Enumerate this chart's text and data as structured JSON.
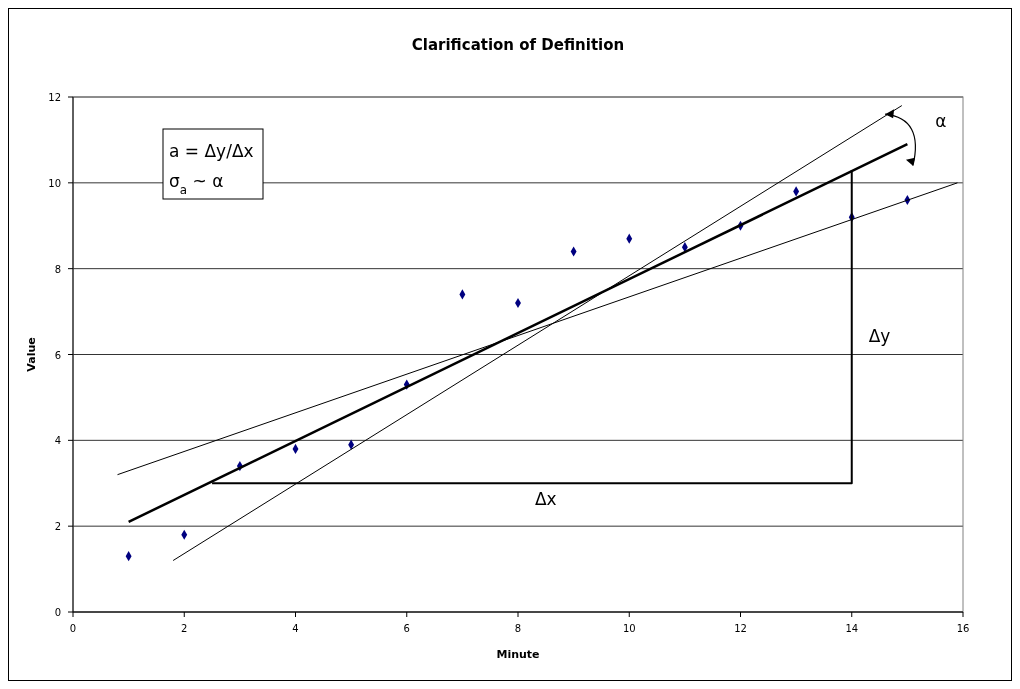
{
  "chart_data": {
    "type": "scatter",
    "title": "Clarification of Definition",
    "xlabel": "Minute",
    "ylabel": "Value",
    "xlim": [
      0,
      16
    ],
    "xticks": [
      0,
      2,
      4,
      6,
      8,
      10,
      12,
      14,
      16
    ],
    "ylim": [
      0,
      12
    ],
    "yticks": [
      0,
      2,
      4,
      6,
      8,
      10,
      12
    ],
    "grid": "y",
    "series": [
      {
        "marker": "diamond",
        "color": "#000080",
        "x": [
          1,
          2,
          3,
          4,
          5,
          6,
          7,
          8,
          9,
          10,
          11,
          12,
          13,
          14,
          15
        ],
        "values": [
          1.3,
          1.8,
          3.4,
          3.8,
          3.9,
          5.3,
          7.4,
          7.2,
          8.4,
          8.7,
          8.5,
          9.0,
          9.8,
          9.2,
          9.6
        ]
      },
      {
        "type": "line",
        "color": "#000000",
        "x": [
          1.8,
          14.9
        ],
        "values": [
          1.2,
          11.8
        ]
      },
      {
        "type": "line",
        "color": "#000000",
        "x": [
          1,
          15
        ],
        "values": [
          2.1,
          10.9
        ]
      },
      {
        "type": "line",
        "color": "#000000",
        "x": [
          0.8,
          15.9
        ],
        "values": [
          3.2,
          10
        ]
      },
      {
        "type": "line",
        "color": "#000000",
        "x": [
          2.5,
          14,
          14
        ],
        "values": [
          3,
          3,
          10.3
        ]
      }
    ],
    "annotations": [
      "a = Δy/Δx",
      "σ$_{a}$ ~ α",
      "Δy",
      "Δx",
      "α"
    ]
  }
}
